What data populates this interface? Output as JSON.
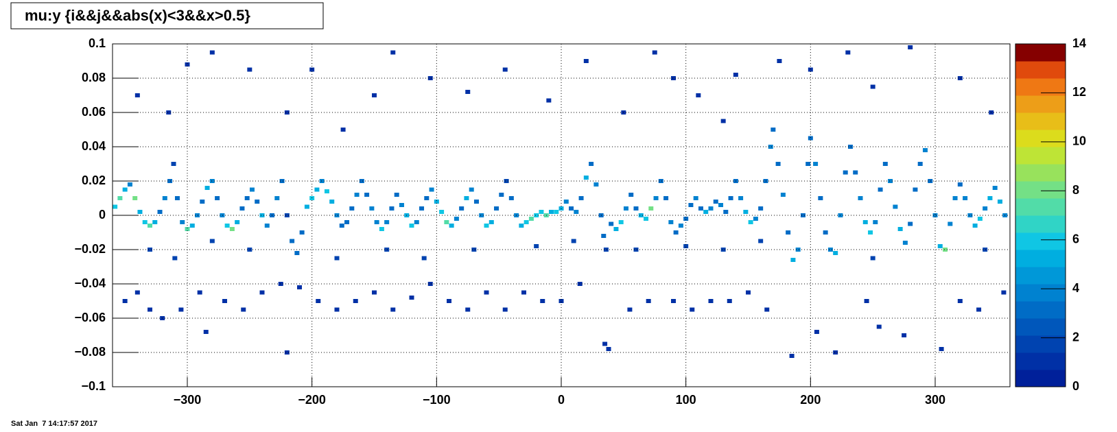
{
  "chart_data": {
    "type": "heatmap2d",
    "title": "mu:y {i&&j&&abs(x)<3&&x>0.5}",
    "footer": "Sat Jan  7 14:17:57 2017",
    "xlim": [
      -360,
      360
    ],
    "xticks": [
      {
        "value": -300,
        "label": "−300"
      },
      {
        "value": -200,
        "label": "−200"
      },
      {
        "value": -100,
        "label": "−100"
      },
      0,
      100,
      200,
      300
    ],
    "ylim": [
      -0.1,
      0.1
    ],
    "yticks": [
      {
        "value": -0.1,
        "label": "−0.1"
      },
      {
        "value": -0.08,
        "label": "−0.08"
      },
      {
        "value": -0.06,
        "label": "−0.06"
      },
      {
        "value": -0.04,
        "label": "−0.04"
      },
      {
        "value": -0.02,
        "label": "−0.02"
      },
      0,
      0.02,
      0.04,
      0.06,
      0.08,
      0.1
    ],
    "zlim": [
      0,
      14
    ],
    "zticks": [
      0,
      2,
      4,
      6,
      8,
      10,
      12,
      14
    ],
    "grid": true,
    "palette": [
      "#00209a",
      "#0030a6",
      "#0043b0",
      "#0057bb",
      "#006cc6",
      "#0082d0",
      "#0098d8",
      "#00aee0",
      "#10c6e4",
      "#30d4c6",
      "#52dca8",
      "#74e086",
      "#98e25c",
      "#bee436",
      "#dcdc1c",
      "#e8be18",
      "#ed9e18",
      "#ef7814",
      "#e04a0c",
      "#850000"
    ],
    "cells": [
      [
        -358,
        0.005,
        6
      ],
      [
        -354,
        0.01,
        7
      ],
      [
        -350,
        0.015,
        5
      ],
      [
        -346,
        0.018,
        4
      ],
      [
        -342,
        0.01,
        8
      ],
      [
        -338,
        0.002,
        5
      ],
      [
        -334,
        -0.004,
        6
      ],
      [
        -330,
        -0.006,
        7
      ],
      [
        -326,
        -0.004,
        5
      ],
      [
        -322,
        0.002,
        3
      ],
      [
        -318,
        0.01,
        4
      ],
      [
        -314,
        0.02,
        3
      ],
      [
        -311,
        0.03,
        2
      ],
      [
        -308,
        0.01,
        3
      ],
      [
        -304,
        -0.004,
        4
      ],
      [
        -300,
        -0.008,
        7
      ],
      [
        -296,
        -0.006,
        5
      ],
      [
        -292,
        0,
        4
      ],
      [
        -288,
        0.008,
        3
      ],
      [
        -284,
        0.016,
        5
      ],
      [
        -280,
        0.02,
        4
      ],
      [
        -276,
        0.01,
        3
      ],
      [
        -272,
        0,
        4
      ],
      [
        -268,
        -0.006,
        6
      ],
      [
        -264,
        -0.008,
        8
      ],
      [
        -260,
        -0.004,
        5
      ],
      [
        -256,
        0.004,
        3
      ],
      [
        -252,
        0.01,
        3
      ],
      [
        -248,
        0.015,
        4
      ],
      [
        -244,
        0.008,
        3
      ],
      [
        -240,
        0,
        5
      ],
      [
        -236,
        -0.006,
        4
      ],
      [
        -232,
        0,
        3
      ],
      [
        -228,
        0.01,
        4
      ],
      [
        -224,
        0.02,
        3
      ],
      [
        -220,
        0,
        2
      ],
      [
        -216,
        -0.015,
        3
      ],
      [
        -212,
        -0.022,
        3
      ],
      [
        -208,
        -0.01,
        3
      ],
      [
        -204,
        0.005,
        5
      ],
      [
        -200,
        0.01,
        6
      ],
      [
        -196,
        0.015,
        5
      ],
      [
        -192,
        0.02,
        4
      ],
      [
        -188,
        0.014,
        6
      ],
      [
        -184,
        0.008,
        5
      ],
      [
        -180,
        0,
        4
      ],
      [
        -176,
        -0.006,
        3
      ],
      [
        -172,
        -0.004,
        3
      ],
      [
        -168,
        0.004,
        3
      ],
      [
        -164,
        0.012,
        4
      ],
      [
        -160,
        0.02,
        3
      ],
      [
        -156,
        0.012,
        3
      ],
      [
        -152,
        0.004,
        4
      ],
      [
        -148,
        -0.004,
        4
      ],
      [
        -144,
        -0.008,
        6
      ],
      [
        -140,
        -0.004,
        4
      ],
      [
        -136,
        0.004,
        3
      ],
      [
        -132,
        0.012,
        3
      ],
      [
        -128,
        0.006,
        4
      ],
      [
        -124,
        0,
        5
      ],
      [
        -120,
        -0.006,
        6
      ],
      [
        -116,
        -0.004,
        4
      ],
      [
        -112,
        0.004,
        3
      ],
      [
        -108,
        0.01,
        3
      ],
      [
        -104,
        0.015,
        4
      ],
      [
        -100,
        0.008,
        5
      ],
      [
        -96,
        0.002,
        6
      ],
      [
        -92,
        -0.004,
        7
      ],
      [
        -88,
        -0.006,
        5
      ],
      [
        -84,
        -0.002,
        4
      ],
      [
        -80,
        0.004,
        3
      ],
      [
        -76,
        0.01,
        5
      ],
      [
        -72,
        0.015,
        4
      ],
      [
        -68,
        0.008,
        3
      ],
      [
        -64,
        0,
        4
      ],
      [
        -60,
        -0.006,
        6
      ],
      [
        -56,
        -0.004,
        5
      ],
      [
        -52,
        0.004,
        3
      ],
      [
        -48,
        0.012,
        3
      ],
      [
        -44,
        0.02,
        2
      ],
      [
        -40,
        0.01,
        3
      ],
      [
        -36,
        0,
        4
      ],
      [
        -32,
        -0.006,
        5
      ],
      [
        -28,
        -0.004,
        6
      ],
      [
        -24,
        -0.002,
        7
      ],
      [
        -20,
        0,
        6
      ],
      [
        -16,
        0.002,
        6
      ],
      [
        -12,
        0,
        7
      ],
      [
        -8,
        0.002,
        5
      ],
      [
        -4,
        0.002,
        6
      ],
      [
        0,
        0.004,
        5
      ],
      [
        4,
        0.008,
        4
      ],
      [
        8,
        0.004,
        3
      ],
      [
        12,
        0.002,
        4
      ],
      [
        16,
        0.01,
        3
      ],
      [
        20,
        0.022,
        5
      ],
      [
        24,
        0.03,
        3
      ],
      [
        28,
        0.018,
        4
      ],
      [
        32,
        0,
        3
      ],
      [
        34,
        -0.012,
        3
      ],
      [
        36,
        -0.02,
        2
      ],
      [
        40,
        -0.005,
        3
      ],
      [
        44,
        -0.008,
        5
      ],
      [
        48,
        -0.004,
        6
      ],
      [
        52,
        0.004,
        4
      ],
      [
        56,
        0.012,
        3
      ],
      [
        60,
        0.004,
        3
      ],
      [
        64,
        0,
        5
      ],
      [
        68,
        -0.002,
        6
      ],
      [
        72,
        0.004,
        8
      ],
      [
        76,
        0.01,
        4
      ],
      [
        80,
        0.02,
        3
      ],
      [
        84,
        0.01,
        3
      ],
      [
        88,
        -0.004,
        4
      ],
      [
        92,
        -0.01,
        3
      ],
      [
        96,
        -0.006,
        4
      ],
      [
        100,
        -0.002,
        3
      ],
      [
        104,
        0.006,
        3
      ],
      [
        108,
        0.01,
        4
      ],
      [
        112,
        0.004,
        3
      ],
      [
        116,
        0.002,
        5
      ],
      [
        120,
        0.004,
        4
      ],
      [
        124,
        0.008,
        3
      ],
      [
        128,
        0.006,
        4
      ],
      [
        132,
        0.002,
        3
      ],
      [
        136,
        0.01,
        3
      ],
      [
        140,
        0.02,
        3
      ],
      [
        144,
        0.01,
        4
      ],
      [
        148,
        0.002,
        5
      ],
      [
        152,
        -0.004,
        6
      ],
      [
        156,
        -0.002,
        4
      ],
      [
        160,
        0.004,
        3
      ],
      [
        164,
        0.02,
        3
      ],
      [
        168,
        0.04,
        4
      ],
      [
        170,
        0.05,
        3
      ],
      [
        174,
        0.03,
        3
      ],
      [
        178,
        0.012,
        4
      ],
      [
        182,
        -0.01,
        3
      ],
      [
        186,
        -0.026,
        5
      ],
      [
        190,
        -0.02,
        4
      ],
      [
        194,
        0,
        3
      ],
      [
        198,
        0.03,
        3
      ],
      [
        200,
        0.045,
        3
      ],
      [
        204,
        0.03,
        4
      ],
      [
        208,
        0.01,
        3
      ],
      [
        212,
        -0.01,
        3
      ],
      [
        216,
        -0.02,
        4
      ],
      [
        220,
        -0.022,
        5
      ],
      [
        224,
        0,
        4
      ],
      [
        228,
        0.025,
        3
      ],
      [
        232,
        0.04,
        3
      ],
      [
        236,
        0.025,
        3
      ],
      [
        240,
        0.01,
        4
      ],
      [
        244,
        -0.004,
        5
      ],
      [
        248,
        -0.01,
        6
      ],
      [
        252,
        -0.004,
        4
      ],
      [
        256,
        0.015,
        3
      ],
      [
        260,
        0.03,
        3
      ],
      [
        264,
        0.02,
        4
      ],
      [
        268,
        0.005,
        4
      ],
      [
        272,
        -0.008,
        5
      ],
      [
        276,
        -0.016,
        4
      ],
      [
        280,
        -0.005,
        3
      ],
      [
        284,
        0.015,
        3
      ],
      [
        288,
        0.03,
        3
      ],
      [
        292,
        0.038,
        4
      ],
      [
        296,
        0.02,
        3
      ],
      [
        300,
        0,
        4
      ],
      [
        304,
        -0.018,
        5
      ],
      [
        308,
        -0.02,
        8
      ],
      [
        312,
        -0.005,
        4
      ],
      [
        316,
        0.01,
        4
      ],
      [
        320,
        0.018,
        3
      ],
      [
        324,
        0.01,
        4
      ],
      [
        328,
        0,
        4
      ],
      [
        332,
        -0.006,
        5
      ],
      [
        336,
        -0.002,
        6
      ],
      [
        340,
        0.004,
        4
      ],
      [
        344,
        0.01,
        5
      ],
      [
        348,
        0.016,
        4
      ],
      [
        352,
        0.008,
        5
      ],
      [
        356,
        0,
        4
      ],
      [
        -350,
        -0.05,
        1
      ],
      [
        -340,
        -0.045,
        1
      ],
      [
        -330,
        -0.055,
        1
      ],
      [
        -320,
        -0.06,
        1
      ],
      [
        -305,
        -0.055,
        1
      ],
      [
        -290,
        -0.045,
        1
      ],
      [
        -270,
        -0.05,
        1
      ],
      [
        -255,
        -0.055,
        1
      ],
      [
        -240,
        -0.045,
        1
      ],
      [
        -225,
        -0.04,
        1
      ],
      [
        -210,
        -0.042,
        1
      ],
      [
        -195,
        -0.05,
        1
      ],
      [
        -180,
        -0.055,
        1
      ],
      [
        -165,
        -0.05,
        1
      ],
      [
        -150,
        -0.045,
        1
      ],
      [
        -135,
        -0.055,
        1
      ],
      [
        -120,
        -0.048,
        1
      ],
      [
        -105,
        -0.04,
        1
      ],
      [
        -90,
        -0.05,
        1
      ],
      [
        -75,
        -0.055,
        1
      ],
      [
        -60,
        -0.045,
        1
      ],
      [
        -45,
        -0.055,
        1
      ],
      [
        -30,
        -0.045,
        1
      ],
      [
        -15,
        -0.05,
        1
      ],
      [
        0,
        -0.05,
        1
      ],
      [
        15,
        -0.04,
        1
      ],
      [
        35,
        -0.075,
        1
      ],
      [
        38,
        -0.078,
        1
      ],
      [
        55,
        -0.055,
        1
      ],
      [
        70,
        -0.05,
        1
      ],
      [
        90,
        -0.05,
        1
      ],
      [
        105,
        -0.055,
        1
      ],
      [
        120,
        -0.05,
        1
      ],
      [
        135,
        -0.05,
        1
      ],
      [
        150,
        -0.045,
        1
      ],
      [
        165,
        -0.055,
        1
      ],
      [
        185,
        -0.082,
        1
      ],
      [
        205,
        -0.068,
        1
      ],
      [
        220,
        -0.08,
        1
      ],
      [
        245,
        -0.05,
        1
      ],
      [
        255,
        -0.065,
        1
      ],
      [
        275,
        -0.07,
        1
      ],
      [
        305,
        -0.078,
        1
      ],
      [
        320,
        -0.05,
        1
      ],
      [
        335,
        -0.055,
        1
      ],
      [
        355,
        -0.045,
        1
      ],
      [
        -220,
        -0.08,
        1
      ],
      [
        -285,
        -0.068,
        1
      ],
      [
        -340,
        0.07,
        1
      ],
      [
        -315,
        0.06,
        1
      ],
      [
        -300,
        0.088,
        1
      ],
      [
        -280,
        0.095,
        1
      ],
      [
        -250,
        0.085,
        1
      ],
      [
        -220,
        0.06,
        1
      ],
      [
        -200,
        0.085,
        1
      ],
      [
        -175,
        0.05,
        1
      ],
      [
        -150,
        0.07,
        1
      ],
      [
        -135,
        0.095,
        1
      ],
      [
        -105,
        0.08,
        1
      ],
      [
        -75,
        0.072,
        1
      ],
      [
        -45,
        0.085,
        1
      ],
      [
        -10,
        0.067,
        1
      ],
      [
        20,
        0.09,
        1
      ],
      [
        50,
        0.06,
        1
      ],
      [
        75,
        0.095,
        1
      ],
      [
        90,
        0.08,
        1
      ],
      [
        110,
        0.07,
        1
      ],
      [
        130,
        0.055,
        1
      ],
      [
        140,
        0.082,
        1
      ],
      [
        175,
        0.09,
        1
      ],
      [
        200,
        0.085,
        1
      ],
      [
        230,
        0.095,
        1
      ],
      [
        250,
        0.075,
        1
      ],
      [
        280,
        0.098,
        1
      ],
      [
        320,
        0.08,
        1
      ],
      [
        345,
        0.06,
        1
      ],
      [
        -330,
        -0.02,
        2
      ],
      [
        -310,
        -0.025,
        2
      ],
      [
        -280,
        -0.015,
        2
      ],
      [
        -250,
        -0.02,
        2
      ],
      [
        -180,
        -0.025,
        2
      ],
      [
        -140,
        -0.02,
        2
      ],
      [
        -110,
        -0.025,
        2
      ],
      [
        -70,
        -0.02,
        2
      ],
      [
        -20,
        -0.018,
        2
      ],
      [
        10,
        -0.015,
        2
      ],
      [
        60,
        -0.02,
        2
      ],
      [
        100,
        -0.018,
        2
      ],
      [
        130,
        -0.02,
        2
      ],
      [
        160,
        -0.015,
        2
      ],
      [
        250,
        -0.025,
        2
      ],
      [
        340,
        -0.02,
        2
      ]
    ]
  }
}
